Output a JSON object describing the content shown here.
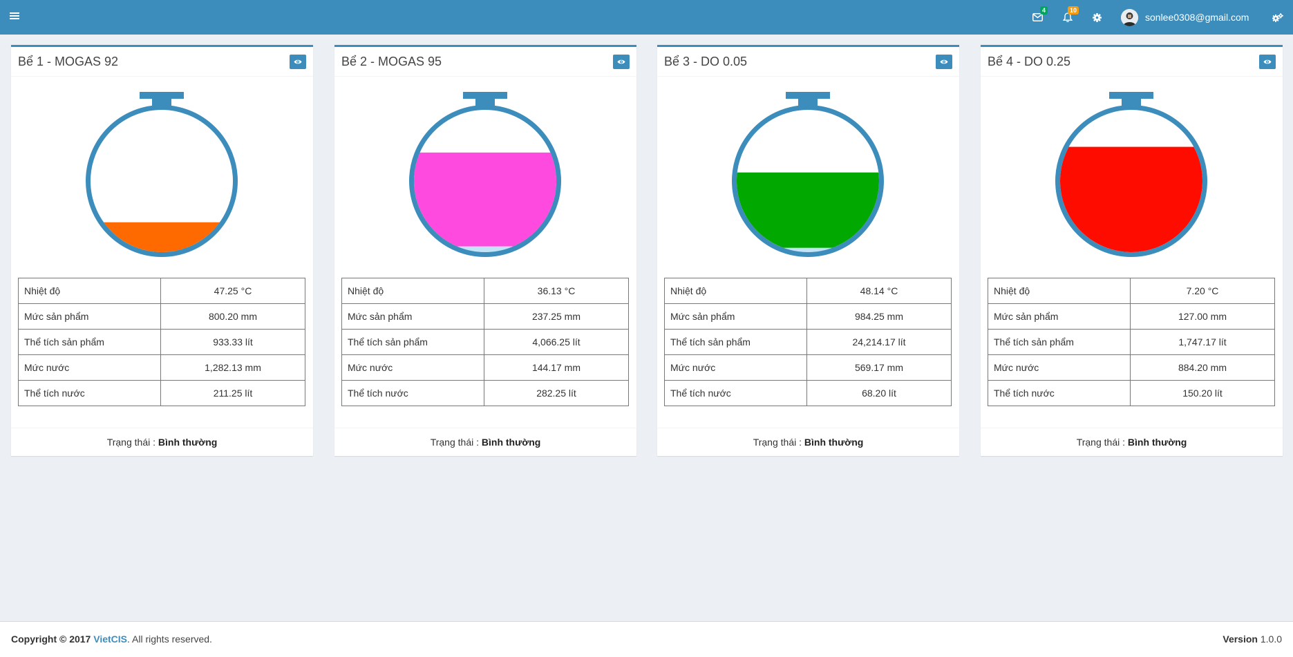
{
  "header": {
    "mail_badge": "4",
    "bell_badge": "10",
    "user_email": "sonlee0308@gmail.com"
  },
  "colors": {
    "brand": "#3c8dbc",
    "mail_badge": "#00a65a",
    "bell_badge": "#f39c12"
  },
  "icons": {
    "menu": "bars-icon",
    "mail": "envelope-icon",
    "bell": "bell-icon",
    "settings": "gear-icon",
    "sidebar_toggle": "gears-icon",
    "view": "eye-icon"
  },
  "tanks": [
    {
      "title": "Bể 1 - MOGAS 92",
      "fill_color": "#ff6a00",
      "product_level_fraction": 0.21,
      "water_level_fraction": 0.0,
      "rows": [
        {
          "label": "Nhiệt độ",
          "value": "47.25 °C"
        },
        {
          "label": "Mức sản phẩm",
          "value": "800.20 mm"
        },
        {
          "label": "Thể tích sản phẩm",
          "value": "933.33 lít"
        },
        {
          "label": "Mức nước",
          "value": "1,282.13 mm"
        },
        {
          "label": "Thể tích nước",
          "value": "211.25 lít"
        }
      ],
      "status_label": "Trạng thái :",
      "status_value": "Bình thường"
    },
    {
      "title": "Bể 2 - MOGAS 95",
      "fill_color": "#ff4ae0",
      "product_level_fraction": 0.7,
      "water_level_fraction": 0.04,
      "rows": [
        {
          "label": "Nhiệt độ",
          "value": "36.13 °C"
        },
        {
          "label": "Mức sản phẩm",
          "value": "237.25 mm"
        },
        {
          "label": "Thể tích sản phẩm",
          "value": "4,066.25 lít"
        },
        {
          "label": "Mức nước",
          "value": "144.17 mm"
        },
        {
          "label": "Thể tích nước",
          "value": "282.25 lít"
        }
      ],
      "status_label": "Trạng thái :",
      "status_value": "Bình thường"
    },
    {
      "title": "Bể 3 - DO 0.05",
      "fill_color": "#00a800",
      "product_level_fraction": 0.56,
      "water_level_fraction": 0.03,
      "rows": [
        {
          "label": "Nhiệt độ",
          "value": "48.14 °C"
        },
        {
          "label": "Mức sản phẩm",
          "value": "984.25 mm"
        },
        {
          "label": "Thể tích sản phẩm",
          "value": "24,214.17 lít"
        },
        {
          "label": "Mức nước",
          "value": "569.17 mm"
        },
        {
          "label": "Thể tích nước",
          "value": "68.20 lít"
        }
      ],
      "status_label": "Trạng thái :",
      "status_value": "Bình thường"
    },
    {
      "title": "Bể 4 - DO 0.25",
      "fill_color": "#ff0c00",
      "product_level_fraction": 0.74,
      "water_level_fraction": 0.0,
      "rows": [
        {
          "label": "Nhiệt độ",
          "value": "7.20 °C"
        },
        {
          "label": "Mức sản phẩm",
          "value": "127.00 mm"
        },
        {
          "label": "Thể tích sản phẩm",
          "value": "1,747.17 lít"
        },
        {
          "label": "Mức nước",
          "value": "884.20 mm"
        },
        {
          "label": "Thể tích nước",
          "value": "150.20 lít"
        }
      ],
      "status_label": "Trạng thái :",
      "status_value": "Bình thường"
    }
  ],
  "footer": {
    "copyright": "Copyright © 2017",
    "brand": "VietCIS",
    "rights": ". All rights reserved.",
    "version_label": "Version",
    "version_value": "1.0.0"
  }
}
